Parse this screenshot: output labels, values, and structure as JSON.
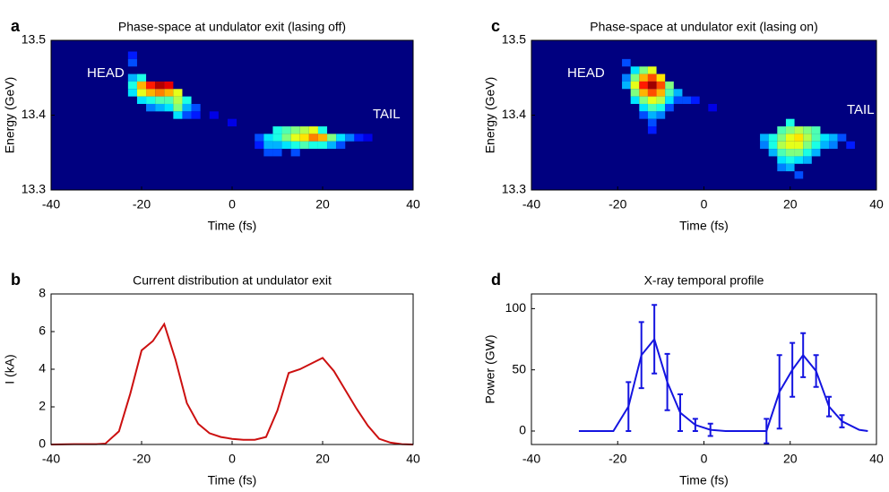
{
  "chart_data": [
    {
      "panel_label": "a",
      "type": "heatmap",
      "title": "Phase-space at undulator exit (lasing off)",
      "xlabel": "Time (fs)",
      "ylabel": "Energy (GeV)",
      "xlim": [
        -40,
        40
      ],
      "ylim": [
        13.3,
        13.5
      ],
      "xticks": [
        -40,
        -20,
        0,
        20,
        40
      ],
      "yticks": [
        13.3,
        13.4,
        13.5
      ],
      "annotations": [
        "HEAD",
        "TAIL"
      ],
      "points": [
        [
          -22,
          13.48,
          0.15
        ],
        [
          -22,
          13.47,
          0.2
        ],
        [
          -22,
          13.45,
          0.3
        ],
        [
          -22,
          13.44,
          0.4
        ],
        [
          -22,
          13.43,
          0.35
        ],
        [
          -20,
          13.45,
          0.4
        ],
        [
          -20,
          13.44,
          0.7
        ],
        [
          -20,
          13.43,
          0.6
        ],
        [
          -20,
          13.42,
          0.35
        ],
        [
          -18,
          13.44,
          0.85
        ],
        [
          -18,
          13.43,
          0.7
        ],
        [
          -18,
          13.42,
          0.4
        ],
        [
          -18,
          13.41,
          0.25
        ],
        [
          -16,
          13.44,
          0.95
        ],
        [
          -16,
          13.43,
          0.75
        ],
        [
          -16,
          13.42,
          0.45
        ],
        [
          -16,
          13.41,
          0.3
        ],
        [
          -14,
          13.44,
          0.9
        ],
        [
          -14,
          13.43,
          0.7
        ],
        [
          -14,
          13.42,
          0.45
        ],
        [
          -14,
          13.41,
          0.35
        ],
        [
          -12,
          13.43,
          0.6
        ],
        [
          -12,
          13.42,
          0.55
        ],
        [
          -12,
          13.41,
          0.5
        ],
        [
          -12,
          13.4,
          0.35
        ],
        [
          -10,
          13.42,
          0.4
        ],
        [
          -10,
          13.41,
          0.3
        ],
        [
          -10,
          13.4,
          0.2
        ],
        [
          -8,
          13.41,
          0.2
        ],
        [
          -8,
          13.4,
          0.15
        ],
        [
          -4,
          13.4,
          0.1
        ],
        [
          0,
          13.39,
          0.1
        ],
        [
          6,
          13.37,
          0.2
        ],
        [
          6,
          13.36,
          0.15
        ],
        [
          8,
          13.37,
          0.35
        ],
        [
          8,
          13.36,
          0.3
        ],
        [
          8,
          13.35,
          0.2
        ],
        [
          10,
          13.38,
          0.4
        ],
        [
          10,
          13.37,
          0.4
        ],
        [
          10,
          13.36,
          0.3
        ],
        [
          10,
          13.35,
          0.2
        ],
        [
          12,
          13.38,
          0.45
        ],
        [
          12,
          13.37,
          0.5
        ],
        [
          12,
          13.36,
          0.35
        ],
        [
          14,
          13.38,
          0.5
        ],
        [
          14,
          13.37,
          0.6
        ],
        [
          14,
          13.36,
          0.4
        ],
        [
          14,
          13.35,
          0.2
        ],
        [
          16,
          13.38,
          0.55
        ],
        [
          16,
          13.37,
          0.65
        ],
        [
          16,
          13.36,
          0.45
        ],
        [
          18,
          13.38,
          0.6
        ],
        [
          18,
          13.37,
          0.75
        ],
        [
          18,
          13.36,
          0.4
        ],
        [
          20,
          13.38,
          0.4
        ],
        [
          20,
          13.37,
          0.7
        ],
        [
          20,
          13.36,
          0.4
        ],
        [
          22,
          13.37,
          0.5
        ],
        [
          22,
          13.36,
          0.3
        ],
        [
          24,
          13.37,
          0.35
        ],
        [
          24,
          13.36,
          0.2
        ],
        [
          26,
          13.37,
          0.25
        ],
        [
          28,
          13.37,
          0.15
        ],
        [
          30,
          13.37,
          0.1
        ]
      ]
    },
    {
      "panel_label": "c",
      "type": "heatmap",
      "title": "Phase-space at undulator exit (lasing on)",
      "xlabel": "Time (fs)",
      "ylabel": "Energy (GeV)",
      "xlim": [
        -40,
        40
      ],
      "ylim": [
        13.3,
        13.5
      ],
      "xticks": [
        -40,
        -20,
        0,
        20,
        40
      ],
      "yticks": [
        13.3,
        13.4,
        13.5
      ],
      "annotations": [
        "HEAD",
        "TAIL"
      ],
      "points": [
        [
          -18,
          13.47,
          0.2
        ],
        [
          -18,
          13.45,
          0.25
        ],
        [
          -18,
          13.44,
          0.3
        ],
        [
          -16,
          13.46,
          0.35
        ],
        [
          -16,
          13.45,
          0.5
        ],
        [
          -16,
          13.44,
          0.6
        ],
        [
          -16,
          13.43,
          0.5
        ],
        [
          -16,
          13.42,
          0.35
        ],
        [
          -14,
          13.46,
          0.5
        ],
        [
          -14,
          13.45,
          0.7
        ],
        [
          -14,
          13.44,
          0.85
        ],
        [
          -14,
          13.43,
          0.7
        ],
        [
          -14,
          13.42,
          0.5
        ],
        [
          -14,
          13.41,
          0.35
        ],
        [
          -14,
          13.4,
          0.2
        ],
        [
          -12,
          13.46,
          0.6
        ],
        [
          -12,
          13.45,
          0.8
        ],
        [
          -12,
          13.44,
          0.97
        ],
        [
          -12,
          13.43,
          0.8
        ],
        [
          -12,
          13.42,
          0.6
        ],
        [
          -12,
          13.41,
          0.45
        ],
        [
          -12,
          13.4,
          0.3
        ],
        [
          -12,
          13.39,
          0.2
        ],
        [
          -12,
          13.38,
          0.15
        ],
        [
          -10,
          13.45,
          0.65
        ],
        [
          -10,
          13.44,
          0.8
        ],
        [
          -10,
          13.43,
          0.7
        ],
        [
          -10,
          13.42,
          0.55
        ],
        [
          -10,
          13.41,
          0.4
        ],
        [
          -10,
          13.4,
          0.25
        ],
        [
          -8,
          13.44,
          0.5
        ],
        [
          -8,
          13.43,
          0.45
        ],
        [
          -8,
          13.42,
          0.35
        ],
        [
          -8,
          13.41,
          0.2
        ],
        [
          -6,
          13.43,
          0.3
        ],
        [
          -6,
          13.42,
          0.2
        ],
        [
          -4,
          13.42,
          0.2
        ],
        [
          -2,
          13.42,
          0.15
        ],
        [
          2,
          13.41,
          0.1
        ],
        [
          14,
          13.37,
          0.3
        ],
        [
          14,
          13.36,
          0.25
        ],
        [
          16,
          13.37,
          0.4
        ],
        [
          16,
          13.36,
          0.4
        ],
        [
          16,
          13.35,
          0.3
        ],
        [
          18,
          13.38,
          0.45
        ],
        [
          18,
          13.37,
          0.5
        ],
        [
          18,
          13.36,
          0.55
        ],
        [
          18,
          13.35,
          0.45
        ],
        [
          18,
          13.34,
          0.35
        ],
        [
          18,
          13.33,
          0.25
        ],
        [
          20,
          13.39,
          0.4
        ],
        [
          20,
          13.38,
          0.5
        ],
        [
          20,
          13.37,
          0.6
        ],
        [
          20,
          13.36,
          0.6
        ],
        [
          20,
          13.35,
          0.5
        ],
        [
          20,
          13.34,
          0.4
        ],
        [
          20,
          13.33,
          0.3
        ],
        [
          22,
          13.38,
          0.55
        ],
        [
          22,
          13.37,
          0.65
        ],
        [
          22,
          13.36,
          0.6
        ],
        [
          22,
          13.35,
          0.5
        ],
        [
          22,
          13.34,
          0.35
        ],
        [
          22,
          13.32,
          0.2
        ],
        [
          24,
          13.38,
          0.5
        ],
        [
          24,
          13.37,
          0.55
        ],
        [
          24,
          13.36,
          0.5
        ],
        [
          24,
          13.35,
          0.4
        ],
        [
          24,
          13.34,
          0.3
        ],
        [
          26,
          13.38,
          0.45
        ],
        [
          26,
          13.37,
          0.45
        ],
        [
          26,
          13.36,
          0.4
        ],
        [
          26,
          13.35,
          0.3
        ],
        [
          28,
          13.37,
          0.35
        ],
        [
          28,
          13.36,
          0.3
        ],
        [
          30,
          13.37,
          0.3
        ],
        [
          30,
          13.36,
          0.25
        ],
        [
          32,
          13.37,
          0.2
        ],
        [
          34,
          13.36,
          0.15
        ]
      ]
    },
    {
      "panel_label": "b",
      "type": "line",
      "title": "Current distribution at undulator exit",
      "xlabel": "Time (fs)",
      "ylabel": "I (kA)",
      "xlim": [
        -40,
        40
      ],
      "ylim": [
        0,
        8
      ],
      "xticks": [
        -40,
        -20,
        0,
        20,
        40
      ],
      "yticks": [
        0,
        2,
        4,
        6,
        8
      ],
      "series": [
        {
          "color": "#cc1010",
          "x": [
            -40,
            -35,
            -30,
            -28,
            -25,
            -22.5,
            -20,
            -17.5,
            -15,
            -12.5,
            -10,
            -7.5,
            -5,
            -2.5,
            0,
            2.5,
            5,
            7.5,
            10,
            12.5,
            15,
            20,
            22.5,
            25,
            27.5,
            30,
            32.5,
            35,
            37.5,
            40
          ],
          "values": [
            0,
            0.02,
            0.02,
            0.05,
            0.7,
            2.7,
            5.0,
            5.5,
            6.4,
            4.5,
            2.2,
            1.1,
            0.6,
            0.4,
            0.3,
            0.25,
            0.25,
            0.4,
            1.8,
            3.8,
            4.0,
            4.6,
            3.9,
            2.9,
            1.9,
            1.0,
            0.3,
            0.1,
            0.02,
            0
          ]
        }
      ]
    },
    {
      "panel_label": "d",
      "type": "errorline",
      "title": "X-ray temporal profile",
      "xlabel": "Time (fs)",
      "ylabel": "Power (GW)",
      "xlim": [
        -40,
        40
      ],
      "ylim": [
        -11,
        112
      ],
      "xticks": [
        -40,
        -20,
        0,
        20,
        40
      ],
      "yticks": [
        0,
        50,
        100
      ],
      "series": [
        {
          "color": "#1414e0",
          "x": [
            -29,
            -25,
            -21,
            -17.5,
            -14.5,
            -11.5,
            -8.5,
            -5.5,
            -2,
            1.5,
            5,
            8.5,
            11.5,
            14.5,
            17.5,
            20.5,
            23,
            26,
            29,
            32,
            36,
            38
          ],
          "values": [
            0,
            0,
            0,
            20,
            62,
            75,
            40,
            15,
            5,
            1,
            0,
            0,
            0,
            0,
            32,
            50,
            62,
            49,
            20,
            8,
            1,
            0
          ],
          "errors": [
            null,
            null,
            null,
            20,
            27,
            28,
            23,
            15,
            5,
            5,
            null,
            null,
            null,
            10,
            30,
            22,
            18,
            13,
            8,
            5,
            null,
            null
          ]
        }
      ]
    }
  ]
}
